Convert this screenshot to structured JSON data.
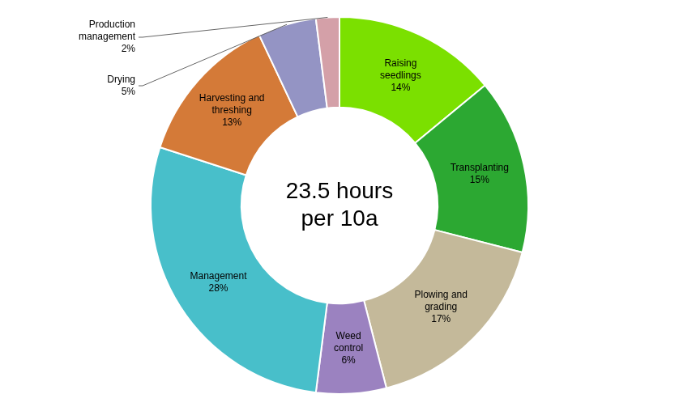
{
  "chart_data": {
    "type": "doughnut",
    "annotations": [
      "23.5 hours",
      "per 10a"
    ],
    "categories": [
      "Raising\nseedlings",
      "Transplanting",
      "Plowing and\ngrading",
      "Weed\ncontrol",
      "Management",
      "Harvesting and\nthreshing",
      "Drying",
      "Production\nmanagement"
    ],
    "values": [
      14,
      15,
      17,
      6,
      28,
      13,
      5,
      2
    ],
    "value_labels": [
      "14%",
      "15%",
      "17%",
      "6%",
      "28%",
      "13%",
      "5%",
      "2%"
    ],
    "colors": [
      "#7BE000",
      "#2CA832",
      "#C4B99A",
      "#9B82C0",
      "#48BFCA",
      "#D47A38",
      "#9494C4",
      "#D4A0A8"
    ],
    "data_labels": true
  }
}
